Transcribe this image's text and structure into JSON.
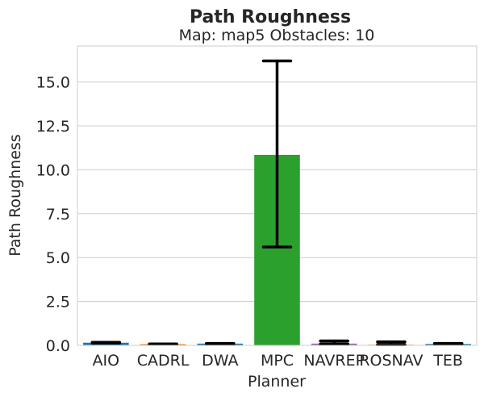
{
  "chart_data": {
    "type": "bar",
    "title": "Path Roughness",
    "subtitle": "Map: map5 Obstacles: 10",
    "xlabel": "Planner",
    "ylabel": "Path Roughness",
    "categories": [
      "AIO",
      "CADRL",
      "DWA",
      "MPC",
      "NAVREP",
      "ROSNAV",
      "TEB"
    ],
    "values": [
      0.15,
      0.07,
      0.1,
      10.85,
      0.1,
      0.05,
      0.08
    ],
    "error_low": [
      0.13,
      0.06,
      0.09,
      5.6,
      0.08,
      0.04,
      0.07
    ],
    "error_high": [
      0.17,
      0.08,
      0.11,
      16.2,
      0.25,
      0.2,
      0.11
    ],
    "colors": [
      "#1f77b4",
      "#ff7f0e",
      "#1f77b4",
      "#2ca02c",
      "#9467bd",
      "#ffbb78",
      "#1f77b4"
    ],
    "yticks": [
      "0.0",
      "2.5",
      "5.0",
      "7.5",
      "10.0",
      "12.5",
      "15.0"
    ],
    "ytick_values": [
      0,
      2.5,
      5,
      7.5,
      10,
      12.5,
      15
    ],
    "ylim": [
      0,
      17.05
    ],
    "grid": true
  }
}
